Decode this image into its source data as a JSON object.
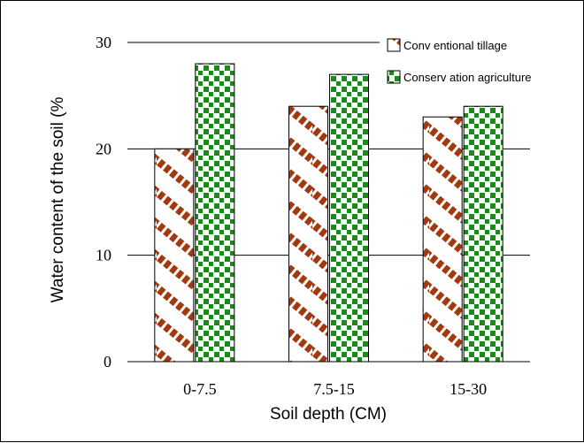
{
  "chart_data": {
    "type": "bar",
    "categories": [
      "0-7.5",
      "7.5-15",
      "15-30"
    ],
    "series": [
      {
        "name": "Conventional tillage",
        "values": [
          20,
          24,
          23
        ],
        "color": "#a3390f",
        "pattern": "diagonal-stripes"
      },
      {
        "name": "Conservation agriculture",
        "values": [
          28,
          27,
          24
        ],
        "color": "#1a8a1a",
        "pattern": "checker-squares"
      }
    ],
    "title": "",
    "xlabel": "Soil depth (CM)",
    "ylabel": "Water content of the soil (%",
    "ylim": [
      0,
      30
    ],
    "yticks": [
      0,
      10,
      20,
      30
    ],
    "grid": true,
    "legend_position": "top-right"
  },
  "legend": {
    "items": [
      {
        "label": "Conv entional tillage"
      },
      {
        "label": "Conserv ation agriculture"
      }
    ]
  }
}
